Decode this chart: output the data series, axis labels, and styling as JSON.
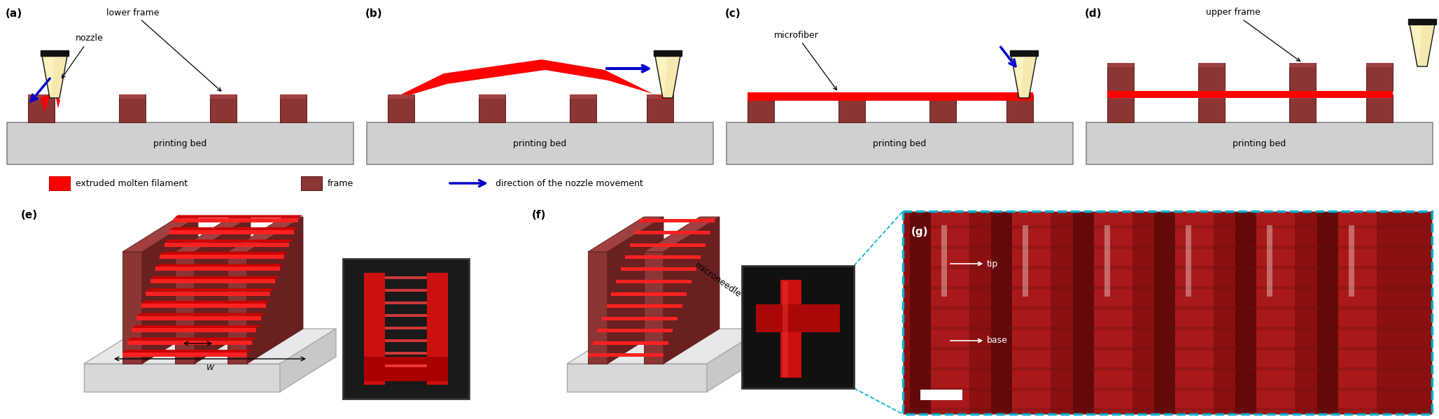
{
  "fig_width": 20.56,
  "fig_height": 5.99,
  "bg_color": "#ffffff",
  "bed_color": "#d0d0d0",
  "bed_edge_color": "#888888",
  "frame_color": "#8B3535",
  "frame_edge_color": "#5a1a1a",
  "frame_top_color": "#a04040",
  "filament_red": "#ff0000",
  "nozzle_body_color": "#f5e8b0",
  "nozzle_gradient_color": "#e8d080",
  "nozzle_edge": "#111111",
  "nozzle_cap_color": "#111111",
  "arrow_blue": "#0000cc",
  "text_color": "#000000",
  "panel_labels_top": [
    "(a)",
    "(b)",
    "(c)",
    "(d)"
  ],
  "panel_labels_bot": [
    "(e)",
    "(f)",
    "(g)"
  ],
  "annotations_a": [
    "lower frame",
    "nozzle"
  ],
  "annotation_c": "microfiber",
  "annotation_d": "upper frame",
  "printing_bed_text": "printing bed",
  "legend_texts": [
    "extruded molten filament",
    "frame",
    "direction of the nozzle movement"
  ],
  "microneedle_text": "microneedle",
  "tip_text": "tip",
  "base_text": "base",
  "g_bg_color": "#8B1010",
  "g_border_color": "#00b0d0",
  "inset_bg_e": "#1a1a1a",
  "inset_bg_f": "#1a1a1a",
  "platform_top_color": "#e8e8e8",
  "platform_side_color": "#c8c8c8",
  "platform_front_color": "#d8d8d8",
  "platform_edge_color": "#aaaaaa"
}
